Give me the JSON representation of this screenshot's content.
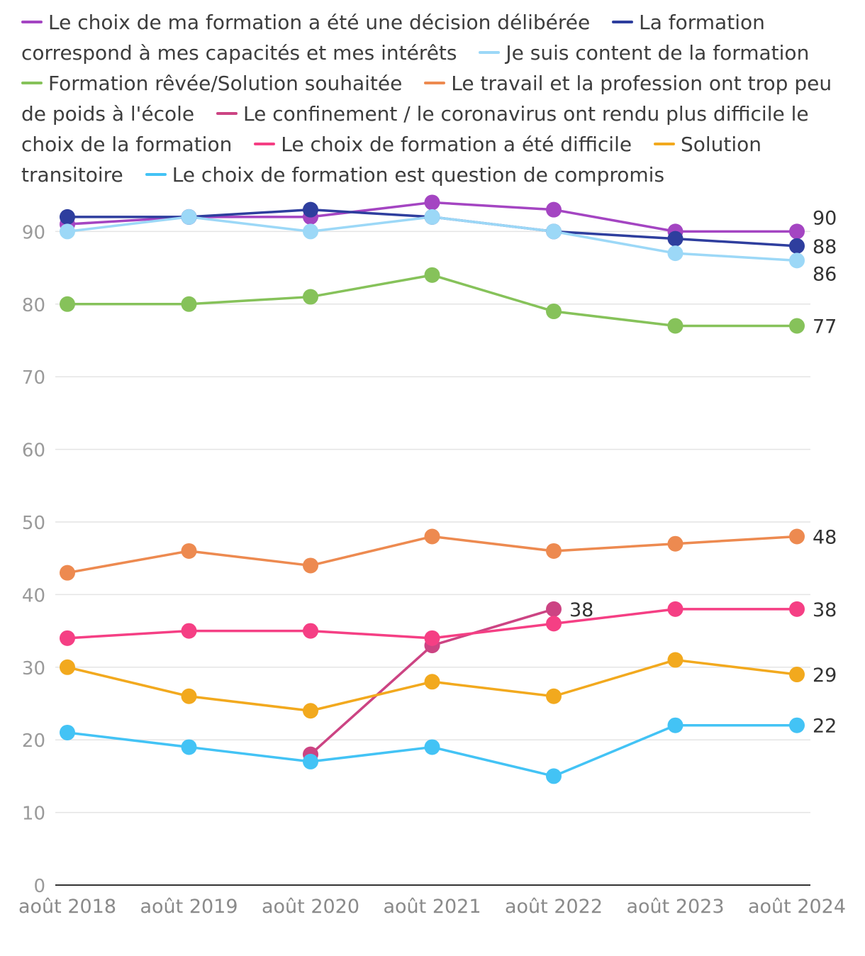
{
  "chart_data": {
    "type": "line",
    "title": "",
    "xlabel": "",
    "ylabel": "",
    "ylim": [
      0,
      95
    ],
    "yticks": [
      0,
      10,
      20,
      30,
      40,
      50,
      60,
      70,
      80,
      90
    ],
    "categories": [
      "août 2018",
      "août 2019",
      "août 2020",
      "août 2021",
      "août 2022",
      "août 2023",
      "août 2024"
    ],
    "grid": true,
    "legend_position": "top",
    "series": [
      {
        "name": "Le choix de ma formation a été une décision délibérée",
        "color": "#a445c2",
        "values": [
          91,
          92,
          92,
          94,
          93,
          90,
          90
        ],
        "end_label": "90"
      },
      {
        "name": "La formation correspond à mes capacités et mes intérêts",
        "color": "#2e3e9e",
        "values": [
          92,
          92,
          93,
          92,
          90,
          89,
          88
        ],
        "end_label": "88"
      },
      {
        "name": "Je suis content de la formation",
        "color": "#9cd8f7",
        "values": [
          90,
          92,
          90,
          92,
          90,
          87,
          86
        ],
        "end_label": "86"
      },
      {
        "name": "Formation rêvée/Solution souhaitée",
        "color": "#86c25a",
        "values": [
          80,
          80,
          81,
          84,
          79,
          77,
          77
        ],
        "end_label": "77"
      },
      {
        "name": "Le travail et la profession ont trop peu de poids à l'école",
        "color": "#ed8a50",
        "values": [
          43,
          46,
          44,
          48,
          46,
          47,
          48
        ],
        "end_label": "48"
      },
      {
        "name": "Le confinement / le coronavirus ont rendu plus difficile le choix de la formation",
        "color": "#cc4483",
        "values": [
          null,
          null,
          18,
          33,
          38,
          null,
          null
        ],
        "end_label": "38"
      },
      {
        "name": "Le choix de formation a été difficile",
        "color": "#f53f84",
        "values": [
          34,
          35,
          35,
          34,
          36,
          38,
          38
        ],
        "end_label": "38"
      },
      {
        "name": "Solution transitoire",
        "color": "#f2a91e",
        "values": [
          30,
          26,
          24,
          28,
          26,
          31,
          29
        ],
        "end_label": "29"
      },
      {
        "name": "Le choix de formation est question de compromis",
        "color": "#43c3f5",
        "values": [
          21,
          19,
          17,
          19,
          15,
          22,
          22
        ],
        "end_label": "22"
      }
    ]
  }
}
